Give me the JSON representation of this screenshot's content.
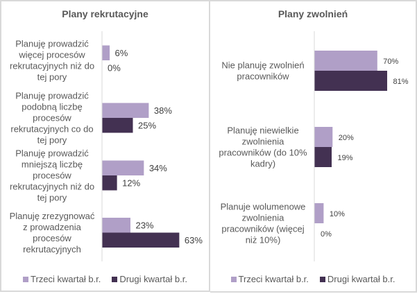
{
  "colors": {
    "series_q3": "#b09fc7",
    "series_q2": "#433152",
    "axis": "#d9d9d9",
    "border": "#d9d9d9"
  },
  "chart_data": [
    {
      "type": "bar",
      "orientation": "horizontal",
      "title": "Plany rekrutacyjne",
      "categories": [
        "Planuję prowadzić więcej procesów rekrutacyjnych niż do tej pory",
        "Planuję prowadzić podobną liczbę procesów rekrutacyjnych co do tej pory",
        "Planuję prowadzić mniejszą liczbę procesów rekrutacyjnych niż do tej pory",
        "Planuję zrezygnować z prowadzenia procesów rekrutacyjnych"
      ],
      "category_lines": [
        [
          "Planuję prowadzić",
          "więcej procesów",
          "rekrutacyjnych niż do",
          "tej pory"
        ],
        [
          "Planuję prowadzić",
          "podobną liczbę",
          "procesów",
          "rekrutacyjnych co do",
          "tej pory"
        ],
        [
          "Planuję prowadzić",
          "mniejszą liczbę",
          "procesów",
          "rekrutacyjnych niż do",
          "tej pory"
        ],
        [
          "Planuję zrezygnować",
          "z prowadzenia",
          "procesów",
          "rekrutacyjnych"
        ]
      ],
      "series": [
        {
          "name": "Trzeci kwartał b.r.",
          "values": [
            6,
            38,
            34,
            23
          ],
          "labels": [
            "6%",
            "38%",
            "34%",
            "23%"
          ]
        },
        {
          "name": "Drugi kwartał b.r.",
          "values": [
            0,
            25,
            12,
            63
          ],
          "labels": [
            "0%",
            "25%",
            "12%",
            "63%"
          ]
        }
      ],
      "xlim": [
        0,
        70
      ],
      "grid": false,
      "legend": "bottom"
    },
    {
      "type": "bar",
      "orientation": "horizontal",
      "title": "Plany zwolnień",
      "categories": [
        "Nie planuję zwolnień pracowników",
        "Planuję niewielkie zwolnienia pracowników (do 10% kadry)",
        "Planuje wolumenowe zwolnienia pracowników (więcej niż 10%)"
      ],
      "category_lines": [
        [
          "Nie planuję zwolnień",
          "pracowników"
        ],
        [
          "Planuję niewielkie",
          "zwolnienia",
          "pracowników (do 10%",
          "kadry)"
        ],
        [
          "Planuje wolumenowe",
          "zwolnienia",
          "pracowników (więcej",
          "niż 10%)"
        ]
      ],
      "series": [
        {
          "name": "Trzeci kwartał b.r.",
          "values": [
            70,
            20,
            10
          ],
          "labels": [
            "70%",
            "20%",
            "10%"
          ]
        },
        {
          "name": "Drugi kwartał b.r.",
          "values": [
            81,
            19,
            0
          ],
          "labels": [
            "81%",
            "19%",
            "0%"
          ]
        }
      ],
      "xlim": [
        0,
        100
      ],
      "grid": false,
      "legend": "bottom"
    }
  ]
}
